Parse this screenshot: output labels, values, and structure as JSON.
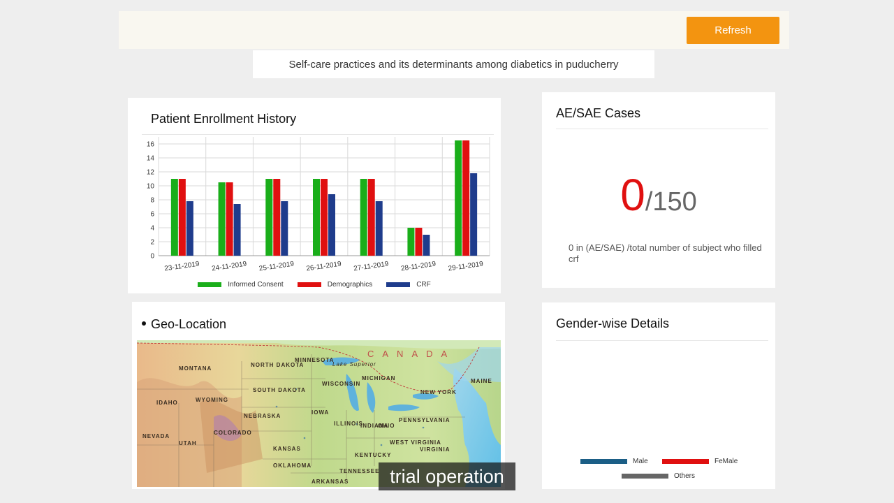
{
  "toolbar": {
    "refresh_label": "Refresh"
  },
  "study_title": "Self-care practices and its determinants among diabetics in puducherry",
  "enrollment": {
    "title": "Patient Enrollment History",
    "chart_data": {
      "type": "bar",
      "title": "Patient Enrollment History",
      "categories": [
        "23-11-2019",
        "24-11-2019",
        "25-11-2019",
        "26-11-2019",
        "27-11-2019",
        "28-11-2019",
        "29-11-2019"
      ],
      "series": [
        {
          "name": "Informed Consent",
          "color": "#1aae1a",
          "values": [
            11,
            10.5,
            11,
            11,
            11,
            4,
            16.5
          ]
        },
        {
          "name": "Demographics",
          "color": "#e01010",
          "values": [
            11,
            10.5,
            11,
            11,
            11,
            4,
            16.5
          ]
        },
        {
          "name": "CRF",
          "color": "#1f3c8c",
          "values": [
            7.8,
            7.4,
            7.8,
            8.8,
            7.8,
            3,
            11.8
          ]
        }
      ],
      "yticks": [
        0,
        2,
        4,
        6,
        8,
        10,
        12,
        14,
        16
      ],
      "ylim": [
        0,
        17
      ],
      "xlabel": "",
      "ylabel": "",
      "legend": "bottom"
    }
  },
  "ae": {
    "title": "AE/SAE Cases",
    "count": "0",
    "total": "/150",
    "description": "0 in (AE/SAE) /total number of subject who filled crf"
  },
  "geo": {
    "title": "Geo-Location",
    "labels": {
      "canada": "CANADA",
      "montana": "MONTANA",
      "north_dakota": "NORTH DAKOTA",
      "south_dakota": "SOUTH DAKOTA",
      "minnesota": "MINNESOTA",
      "wisconsin": "WISCONSIN",
      "michigan": "MICHIGAN",
      "wyoming": "WYOMING",
      "nebraska": "NEBRASKA",
      "iowa": "IOWA",
      "idaho": "IDAHO",
      "nevada": "NEVADA",
      "utah": "UTAH",
      "colorado": "COLORADO",
      "kansas": "KANSAS",
      "oklahoma": "OKLAHOMA",
      "illinois": "ILLINOIS",
      "indiana": "INDIANA",
      "ohio": "OHIO",
      "kentucky": "KENTUCKY",
      "tennessee": "TENNESSEE",
      "pennsylvania": "PENNSYLVANIA",
      "new_york": "NEW YORK",
      "maine": "MAINE",
      "west_virginia": "WEST VIRGINIA",
      "virginia": "VIRGINIA",
      "arkansas": "ARKANSAS",
      "lake_superior": "Lake Superior"
    }
  },
  "gender": {
    "title": "Gender-wise Details",
    "legend": [
      {
        "name": "Male",
        "color": "#1b5e86"
      },
      {
        "name": "FeMale",
        "color": "#e01010"
      },
      {
        "name": "Others",
        "color": "#666666"
      }
    ]
  },
  "caption": "trial operation"
}
